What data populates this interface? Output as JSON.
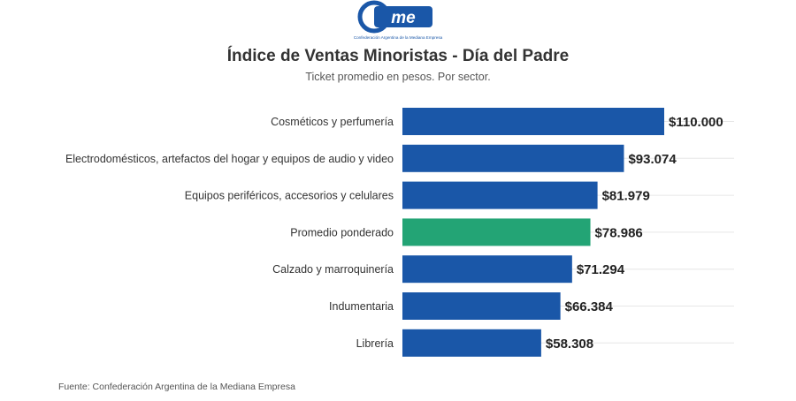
{
  "logo": {
    "text": "Came",
    "tagline": "Confederación Argentina de la Mediana Empresa"
  },
  "colors": {
    "bar": "#1a57a8",
    "highlight": "#23a475",
    "logo": "#1a57a8"
  },
  "chart_data": {
    "type": "bar",
    "orientation": "horizontal",
    "title": "Índice de Ventas Minoristas - Día del Padre",
    "subtitle": "Ticket promedio en pesos. Por sector.",
    "categories": [
      "Cosméticos y perfumería",
      "Electrodomésticos, artefactos del hogar y equipos de audio y video",
      "Equipos periféricos, accesorios y celulares",
      "Promedio ponderado",
      "Calzado y marroquinería",
      "Indumentaria",
      "Librería"
    ],
    "values": [
      110000,
      93074,
      81979,
      78986,
      71294,
      66384,
      58308
    ],
    "value_labels": [
      "$110.000",
      "$93.074",
      "$81.979",
      "$78.986",
      "$71.294",
      "$66.384",
      "$58.308"
    ],
    "highlight_category": "Promedio ponderado",
    "xlim": [
      0,
      110000
    ],
    "grid": true
  },
  "source": "Fuente: Confederación Argentina de la Mediana Empresa"
}
